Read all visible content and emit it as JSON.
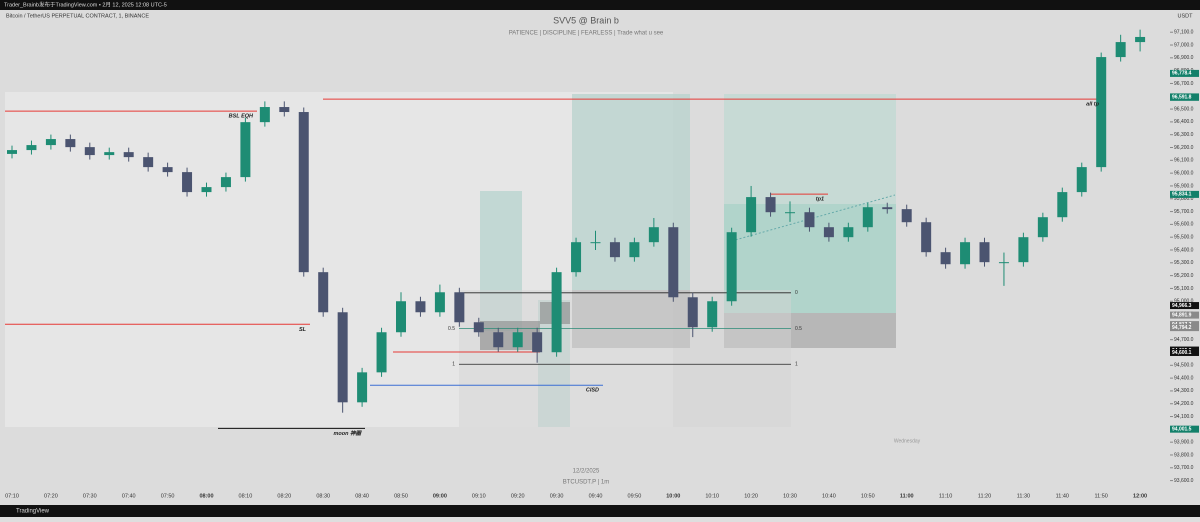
{
  "header": {
    "publisher": "Trader_Brainb发布于TradingView.com • 2月 12, 2025 12:08 UTC-5",
    "symbol": "Bitcoin / TetherUS PERPETUAL CONTRACT, 1, BINANCE",
    "currency": "USDT"
  },
  "footer": {
    "date": "12/2/2025",
    "ticker": "BTCUSDT.P | 1m",
    "day": "Wednesday",
    "brand": "TradingView"
  },
  "chart_data": {
    "type": "candlestick",
    "title": "SVV5 @ Brain b",
    "subtitle": "PATIENCE  |  DISCIPLINE  |  FEARLESS  |  Trade what u see",
    "up_color": "#1e8c74",
    "down_color": "#4b5470",
    "categories": [
      "07:10",
      null,
      "07:20",
      null,
      "07:30",
      null,
      "07:40",
      null,
      "07:50",
      null,
      "08:00",
      null,
      "08:10",
      null,
      "08:20",
      null,
      "08:30",
      null,
      "08:40",
      null,
      "08:50",
      null,
      "09:00",
      null,
      "09:10",
      null,
      "09:20",
      null,
      "09:30",
      null,
      "09:40",
      null,
      "09:50",
      null,
      "10:00",
      null,
      "10:10",
      null,
      "10:20",
      null,
      "10:30",
      null,
      "10:40",
      null,
      "10:50",
      null,
      "11:00",
      null,
      "11:10",
      null,
      "11:20",
      null,
      "11:30",
      null,
      "11:40",
      null,
      "11:50",
      null,
      "12:00"
    ],
    "open": [
      96150,
      96180,
      96219,
      96266,
      96203,
      96141,
      96164,
      96125,
      96047,
      96008,
      95852,
      95891,
      95969,
      96398,
      96516,
      96477,
      95227,
      94914,
      94211,
      94445,
      94758,
      95000,
      94914,
      95070,
      94836,
      94758,
      94641,
      94758,
      94602,
      95227,
      95461,
      95461,
      95344,
      95461,
      95578,
      95031,
      94797,
      95000,
      95539,
      95813,
      95695,
      95695,
      95578,
      95500,
      95578,
      95734,
      95719,
      95617,
      95383,
      95289,
      95461,
      95305,
      95305,
      95500,
      95656,
      95852,
      96047,
      96906,
      97023
    ],
    "high": [
      96215,
      96254,
      96301,
      96301,
      96238,
      96199,
      96199,
      96160,
      96082,
      96043,
      95926,
      96004,
      96433,
      96560,
      96560,
      96512,
      95262,
      94949,
      94480,
      94793,
      95070,
      95035,
      95130,
      95105,
      94871,
      94793,
      94793,
      94793,
      95262,
      95496,
      95550,
      95496,
      95496,
      95650,
      95613,
      95066,
      95035,
      95574,
      95900,
      95848,
      95780,
      95730,
      95613,
      95613,
      95769,
      95769,
      95754,
      95652,
      95418,
      95496,
      95496,
      95380,
      95535,
      95691,
      95887,
      96082,
      96941,
      97080,
      97120
    ],
    "low": [
      96115,
      96145,
      96184,
      96168,
      96106,
      96106,
      96090,
      96012,
      95973,
      95817,
      95817,
      95856,
      95934,
      96363,
      96442,
      95192,
      94879,
      94130,
      94176,
      94410,
      94723,
      94879,
      94879,
      94801,
      94723,
      94606,
      94606,
      94520,
      94567,
      95192,
      95400,
      95309,
      95309,
      95426,
      94996,
      94720,
      94762,
      94965,
      95504,
      95660,
      95620,
      95543,
      95465,
      95465,
      95543,
      95684,
      95582,
      95348,
      95254,
      95254,
      95270,
      95120,
      95270,
      95465,
      95621,
      95817,
      96012,
      96871,
      96950
    ],
    "close": [
      96180,
      96219,
      96266,
      96203,
      96141,
      96164,
      96125,
      96047,
      96008,
      95852,
      95891,
      95969,
      96398,
      96516,
      96477,
      95227,
      94914,
      94211,
      94445,
      94758,
      95000,
      94914,
      95070,
      94836,
      94758,
      94641,
      94758,
      94602,
      95227,
      95461,
      95461,
      95344,
      95461,
      95578,
      95031,
      94797,
      95000,
      95539,
      95813,
      95695,
      95695,
      95578,
      95500,
      95578,
      95734,
      95719,
      95617,
      95383,
      95289,
      95461,
      95305,
      95305,
      95500,
      95656,
      95852,
      96047,
      96906,
      97023,
      97063
    ],
    "ylim": [
      93550,
      97250
    ],
    "yticks": [
      {
        "value": 93600,
        "label": "93,600.0"
      },
      {
        "value": 93700,
        "label": "93,700.0"
      },
      {
        "value": 93800,
        "label": "93,800.0"
      },
      {
        "value": 93900,
        "label": "93,900.0"
      },
      {
        "value": 94000,
        "label": "94,000.0"
      },
      {
        "value": 94100,
        "label": "94,100.0"
      },
      {
        "value": 94200,
        "label": "94,200.0"
      },
      {
        "value": 94300,
        "label": "94,300.0"
      },
      {
        "value": 94400,
        "label": "94,400.0"
      },
      {
        "value": 94500,
        "label": "94,500.0"
      },
      {
        "value": 94600,
        "label": "94,600.0"
      },
      {
        "value": 94700,
        "label": "94,700.0"
      },
      {
        "value": 94800,
        "label": "94,800.0"
      },
      {
        "value": 94900,
        "label": "94,900.0"
      },
      {
        "value": 95000,
        "label": "95,000.0"
      },
      {
        "value": 95100,
        "label": "95,100.0"
      },
      {
        "value": 95200,
        "label": "95,200.0"
      },
      {
        "value": 95300,
        "label": "95,300.0"
      },
      {
        "value": 95400,
        "label": "95,400.0"
      },
      {
        "value": 95500,
        "label": "95,500.0"
      },
      {
        "value": 95600,
        "label": "95,600.0"
      },
      {
        "value": 95700,
        "label": "95,700.0"
      },
      {
        "value": 95800,
        "label": "95,800.0"
      },
      {
        "value": 95900,
        "label": "95,900.0"
      },
      {
        "value": 96000,
        "label": "96,000.0"
      },
      {
        "value": 96100,
        "label": "96,100.0"
      },
      {
        "value": 96200,
        "label": "96,200.0"
      },
      {
        "value": 96300,
        "label": "96,300.0"
      },
      {
        "value": 96400,
        "label": "96,400.0"
      },
      {
        "value": 96500,
        "label": "96,500.0"
      },
      {
        "value": 96600,
        "label": "96,600.0"
      },
      {
        "value": 96700,
        "label": "96,700.0"
      },
      {
        "value": 96800,
        "label": "96,800.0"
      },
      {
        "value": 96900,
        "label": "96,900.0"
      },
      {
        "value": 97000,
        "label": "97,000.0"
      },
      {
        "value": 97100,
        "label": "97,100.0"
      }
    ],
    "price_tags": [
      {
        "value": 96778.4,
        "label": "96,778.4",
        "color": "#12806a"
      },
      {
        "value": 96595.0,
        "label": "96,595.0",
        "color": "#12806a"
      },
      {
        "value": 96591.8,
        "label": "96,591.8",
        "color": "#12806a"
      },
      {
        "value": 95834.1,
        "label": "95,834.1",
        "color": "#12806a"
      },
      {
        "value": 94966.3,
        "label": "94,966.3",
        "color": "#111111"
      },
      {
        "value": 94891.9,
        "label": "94,891.9",
        "color": "#8a8a8a"
      },
      {
        "value": 94817.7,
        "label": "94,817.7",
        "color": "#8a8a8a"
      },
      {
        "value": 94794.2,
        "label": "94,794.2",
        "color": "#8a8a8a"
      },
      {
        "value": 94618.9,
        "label": "94,618.9",
        "color": "#111111"
      },
      {
        "value": 94615.8,
        "label": "94,615.8",
        "color": "#111111"
      },
      {
        "value": 94600.1,
        "label": "94,600.1",
        "color": "#111111"
      },
      {
        "value": 94001.5,
        "label": "94,001.5",
        "color": "#12806a"
      }
    ],
    "levels": [
      {
        "label": "BSL EQH",
        "value": 96484,
        "color": "#e53935"
      },
      {
        "label": "all tp",
        "value": 96578,
        "color": "#e53935"
      },
      {
        "label": "SL",
        "value": 94820,
        "color": "#e53935"
      },
      {
        "label": "moon 神圈",
        "value": 94008,
        "color": "#111111"
      },
      {
        "label": "CISD",
        "value": 94344,
        "color": "#3b6fd4"
      },
      {
        "label": "tp1",
        "value": 95836,
        "color": "#e53935"
      }
    ],
    "fib": [
      {
        "label": "0",
        "value": 95066
      },
      {
        "label": "0.5",
        "value": 94787
      },
      {
        "label": "1",
        "value": 94508
      }
    ]
  }
}
